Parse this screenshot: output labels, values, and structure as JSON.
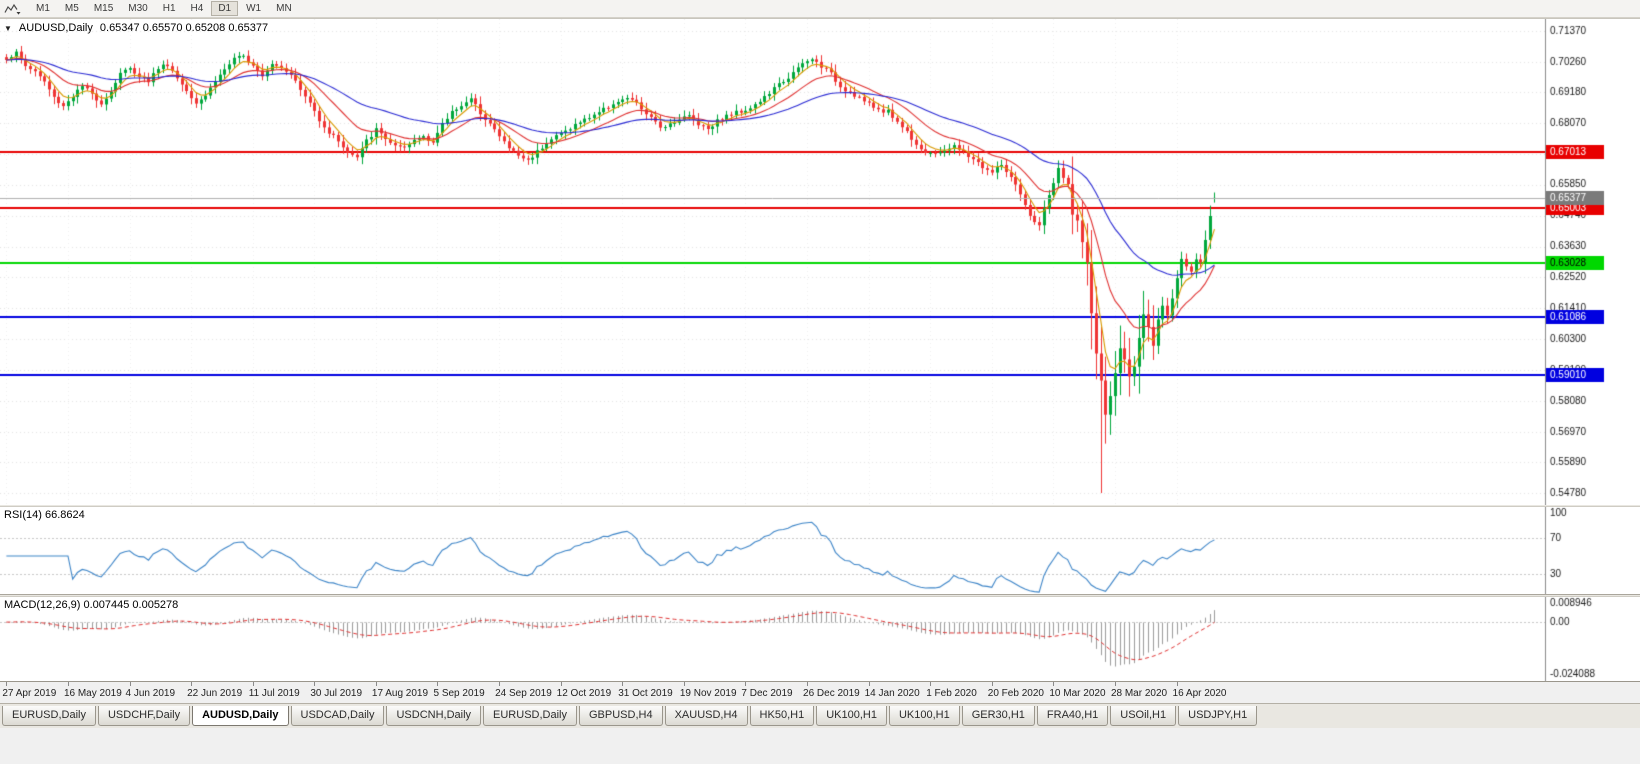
{
  "toolbar": {
    "timeframes": [
      "M1",
      "M5",
      "M15",
      "M30",
      "H1",
      "H4",
      "D1",
      "W1",
      "MN"
    ],
    "active_timeframe": "D1"
  },
  "header": {
    "collapse_icon": "▼",
    "symbol": "AUDUSD,Daily",
    "ohlc": "0.65347 0.65570 0.65208 0.65377"
  },
  "indicators": {
    "rsi_label": "RSI(14) 66.8624",
    "macd_label": "MACD(12,26,9) 0.007445 0.005278"
  },
  "chart_data": {
    "type": "candlestick",
    "symbol": "AUDUSD",
    "timeframe": "Daily",
    "num_candles": 256,
    "last_candle": {
      "open": 0.65347,
      "high": 0.6557,
      "low": 0.65208,
      "close": 0.65377
    },
    "crash_low": {
      "index": 231,
      "low": 0.5478
    },
    "price_anchors": [
      [
        0,
        0.7038
      ],
      [
        2,
        0.7058
      ],
      [
        4,
        0.7012
      ],
      [
        6,
        0.6992
      ],
      [
        8,
        0.6955
      ],
      [
        10,
        0.6898
      ],
      [
        12,
        0.6868
      ],
      [
        14,
        0.6905
      ],
      [
        16,
        0.6938
      ],
      [
        18,
        0.691
      ],
      [
        20,
        0.6878
      ],
      [
        22,
        0.692
      ],
      [
        24,
        0.6988
      ],
      [
        26,
        0.7
      ],
      [
        28,
        0.6978
      ],
      [
        30,
        0.6958
      ],
      [
        32,
        0.7005
      ],
      [
        34,
        0.7018
      ],
      [
        36,
        0.6968
      ],
      [
        38,
        0.6925
      ],
      [
        40,
        0.6882
      ],
      [
        42,
        0.6908
      ],
      [
        44,
        0.6958
      ],
      [
        46,
        0.7
      ],
      [
        48,
        0.7035
      ],
      [
        50,
        0.7045
      ],
      [
        52,
        0.7018
      ],
      [
        54,
        0.698
      ],
      [
        56,
        0.7022
      ],
      [
        58,
        0.7008
      ],
      [
        60,
        0.6985
      ],
      [
        62,
        0.6925
      ],
      [
        64,
        0.6878
      ],
      [
        66,
        0.682
      ],
      [
        68,
        0.6772
      ],
      [
        70,
        0.6745
      ],
      [
        72,
        0.67
      ],
      [
        74,
        0.6682
      ],
      [
        76,
        0.6742
      ],
      [
        78,
        0.6782
      ],
      [
        80,
        0.6752
      ],
      [
        82,
        0.6722
      ],
      [
        84,
        0.6712
      ],
      [
        86,
        0.6745
      ],
      [
        88,
        0.6762
      ],
      [
        90,
        0.6738
      ],
      [
        92,
        0.68
      ],
      [
        94,
        0.6848
      ],
      [
        96,
        0.6872
      ],
      [
        98,
        0.689
      ],
      [
        100,
        0.6845
      ],
      [
        102,
        0.6805
      ],
      [
        104,
        0.6758
      ],
      [
        106,
        0.6718
      ],
      [
        108,
        0.669
      ],
      [
        110,
        0.6672
      ],
      [
        112,
        0.6705
      ],
      [
        114,
        0.6738
      ],
      [
        116,
        0.676
      ],
      [
        118,
        0.6778
      ],
      [
        120,
        0.68
      ],
      [
        122,
        0.6818
      ],
      [
        124,
        0.6838
      ],
      [
        126,
        0.6855
      ],
      [
        128,
        0.6878
      ],
      [
        130,
        0.6888
      ],
      [
        132,
        0.6892
      ],
      [
        134,
        0.6858
      ],
      [
        136,
        0.6822
      ],
      [
        138,
        0.6792
      ],
      [
        140,
        0.6805
      ],
      [
        142,
        0.6822
      ],
      [
        144,
        0.6832
      ],
      [
        146,
        0.6805
      ],
      [
        148,
        0.6788
      ],
      [
        150,
        0.6815
      ],
      [
        152,
        0.6832
      ],
      [
        154,
        0.6845
      ],
      [
        156,
        0.6855
      ],
      [
        158,
        0.6872
      ],
      [
        160,
        0.6898
      ],
      [
        162,
        0.693
      ],
      [
        164,
        0.6958
      ],
      [
        166,
        0.6985
      ],
      [
        168,
        0.7018
      ],
      [
        170,
        0.7035
      ],
      [
        172,
        0.7012
      ],
      [
        174,
        0.6982
      ],
      [
        176,
        0.6938
      ],
      [
        178,
        0.6918
      ],
      [
        180,
        0.6898
      ],
      [
        182,
        0.6872
      ],
      [
        184,
        0.6855
      ],
      [
        186,
        0.6848
      ],
      [
        188,
        0.6812
      ],
      [
        190,
        0.6775
      ],
      [
        192,
        0.6732
      ],
      [
        194,
        0.6702
      ],
      [
        196,
        0.6692
      ],
      [
        198,
        0.6712
      ],
      [
        200,
        0.6722
      ],
      [
        202,
        0.67
      ],
      [
        204,
        0.6678
      ],
      [
        206,
        0.6648
      ],
      [
        208,
        0.6628
      ],
      [
        210,
        0.6658
      ],
      [
        212,
        0.6608
      ],
      [
        214,
        0.6548
      ],
      [
        216,
        0.6468
      ],
      [
        218,
        0.6442
      ],
      [
        220,
        0.6548
      ],
      [
        222,
        0.6638
      ],
      [
        224,
        0.6578
      ],
      [
        225,
        0.6498
      ],
      [
        226,
        0.6452
      ],
      [
        227,
        0.6372
      ],
      [
        228,
        0.6288
      ],
      [
        229,
        0.6128
      ],
      [
        230,
        0.5985
      ],
      [
        231,
        0.5862
      ],
      [
        232,
        0.5772
      ],
      [
        233,
        0.5815
      ],
      [
        234,
        0.5902
      ],
      [
        235,
        0.6002
      ],
      [
        236,
        0.5958
      ],
      [
        237,
        0.5882
      ],
      [
        238,
        0.5952
      ],
      [
        239,
        0.6052
      ],
      [
        240,
        0.6102
      ],
      [
        241,
        0.6052
      ],
      [
        242,
        0.6002
      ],
      [
        243,
        0.6082
      ],
      [
        244,
        0.6152
      ],
      [
        245,
        0.6108
      ],
      [
        246,
        0.6182
      ],
      [
        247,
        0.6252
      ],
      [
        248,
        0.6325
      ],
      [
        249,
        0.6292
      ],
      [
        250,
        0.6272
      ],
      [
        251,
        0.6318
      ],
      [
        252,
        0.6298
      ],
      [
        253,
        0.6388
      ],
      [
        254,
        0.6468
      ],
      [
        255,
        0.65377
      ]
    ],
    "y_axis": {
      "min": 0.5435,
      "max": 0.718,
      "ticks": [
        0.7137,
        0.7026,
        0.6918,
        0.6807,
        0.6696,
        0.6585,
        0.6474,
        0.6363,
        0.6252,
        0.6141,
        0.603,
        0.5919,
        0.5808,
        0.5697,
        0.5589,
        0.5478
      ]
    },
    "x_labels": [
      {
        "i": 0,
        "label": "27 Apr 2019"
      },
      {
        "i": 13,
        "label": "16 May 2019"
      },
      {
        "i": 26,
        "label": "4 Jun 2019"
      },
      {
        "i": 39,
        "label": "22 Jun 2019"
      },
      {
        "i": 52,
        "label": "11 Jul 2019"
      },
      {
        "i": 65,
        "label": "30 Jul 2019"
      },
      {
        "i": 78,
        "label": "17 Aug 2019"
      },
      {
        "i": 91,
        "label": "5 Sep 2019"
      },
      {
        "i": 104,
        "label": "24 Sep 2019"
      },
      {
        "i": 117,
        "label": "12 Oct 2019"
      },
      {
        "i": 130,
        "label": "31 Oct 2019"
      },
      {
        "i": 143,
        "label": "19 Nov 2019"
      },
      {
        "i": 156,
        "label": "7 Dec 2019"
      },
      {
        "i": 169,
        "label": "26 Dec 2019"
      },
      {
        "i": 182,
        "label": "14 Jan 2020"
      },
      {
        "i": 195,
        "label": "1 Feb 2020"
      },
      {
        "i": 208,
        "label": "20 Feb 2020"
      },
      {
        "i": 221,
        "label": "10 Mar 2020"
      },
      {
        "i": 234,
        "label": "28 Mar 2020"
      },
      {
        "i": 247,
        "label": "16 Apr 2020"
      }
    ],
    "levels": [
      {
        "price": 0.67013,
        "label": "0.67013",
        "color": "#e80000",
        "text_color": "#ffffff",
        "width": 2
      },
      {
        "price": 0.65003,
        "label": "0.65003",
        "color": "#e80000",
        "text_color": "#ffffff",
        "width": 2
      },
      {
        "price": 0.63028,
        "label": "0.63028",
        "color": "#00d800",
        "text_color": "#000000",
        "width": 2
      },
      {
        "price": 0.61086,
        "label": "0.61086",
        "color": "#0000e0",
        "text_color": "#ffffff",
        "width": 2
      },
      {
        "price": 0.5901,
        "label": "0.59010",
        "color": "#0000e0",
        "text_color": "#ffffff",
        "width": 2
      }
    ],
    "current_price": {
      "value": 0.65377,
      "label": "0.65377",
      "line_color": "#b0b0b0",
      "box_color": "#7a7a7a"
    },
    "moving_averages": [
      {
        "type": "ema",
        "period": 5,
        "color": "#d99a00"
      },
      {
        "type": "ema",
        "period": 15,
        "color": "#e03232"
      },
      {
        "type": "ema",
        "period": 40,
        "color": "#2b2bd4"
      }
    ],
    "candle_colors": {
      "up": "#00a83c",
      "down": "#ef3434"
    },
    "rsi_panel": {
      "period": 14,
      "value": 66.8624,
      "color": "#3d85c8",
      "levels": [
        100,
        70,
        30
      ],
      "range": [
        8,
        104
      ]
    },
    "macd_panel": {
      "fast": 12,
      "slow": 26,
      "signal": 9,
      "main_value": 0.007445,
      "signal_value": 0.005278,
      "histogram_color": "#9c9c9c",
      "signal_color": "#e03232",
      "range": [
        -0.027,
        0.0115
      ],
      "axis_labels": [
        {
          "value": 0.008946,
          "text": "0.008946"
        },
        {
          "value": 0,
          "text": "0.00"
        },
        {
          "value": -0.024088,
          "text": "-0.024088"
        }
      ]
    }
  },
  "tabs": {
    "active_index": 2,
    "items": [
      "EURUSD,Daily",
      "USDCHF,Daily",
      "AUDUSD,Daily",
      "USDCAD,Daily",
      "USDCNH,Daily",
      "EURUSD,Daily",
      "GBPUSD,H4",
      "XAUUSD,H4",
      "HK50,H1",
      "UK100,H1",
      "UK100,H1",
      "GER30,H1",
      "FRA40,H1",
      "USOil,H1",
      "USDJPY,H1"
    ]
  }
}
